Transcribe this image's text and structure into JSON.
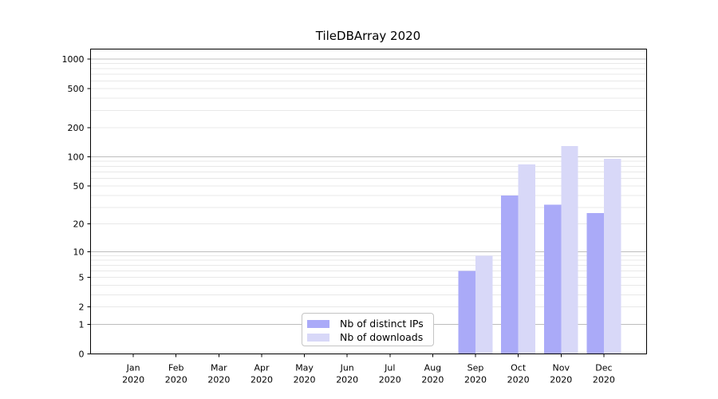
{
  "title": "TileDBArray 2020",
  "colors": {
    "distinct_ips": "#aaaaf8",
    "downloads": "#d8d8f8",
    "grid_major": "#bdbdbd",
    "grid_minor": "#e8e8e8",
    "axis": "#000000",
    "tick_label": "#000000",
    "legend_border": "#c4c4c4",
    "background": "#ffffff"
  },
  "legend": {
    "items": [
      {
        "label": "Nb of distinct IPs",
        "color_key": "distinct_ips"
      },
      {
        "label": "Nb of downloads",
        "color_key": "downloads"
      }
    ]
  },
  "chart_data": {
    "type": "bar",
    "title": "TileDBArray 2020",
    "categories": [
      "Jan 2020",
      "Feb 2020",
      "Mar 2020",
      "Apr 2020",
      "May 2020",
      "Jun 2020",
      "Jul 2020",
      "Aug 2020",
      "Sep 2020",
      "Oct 2020",
      "Nov 2020",
      "Dec 2020"
    ],
    "series": [
      {
        "name": "Nb of distinct IPs",
        "color_key": "distinct_ips",
        "values": [
          0,
          0,
          0,
          0,
          0,
          0,
          0,
          0,
          6,
          40,
          32,
          26
        ]
      },
      {
        "name": "Nb of downloads",
        "color_key": "downloads",
        "values": [
          0,
          0,
          0,
          0,
          0,
          0,
          0,
          0,
          9,
          84,
          130,
          96
        ]
      }
    ],
    "xlabel": "",
    "ylabel": "",
    "yscale": "log10(value+1)",
    "yticks": [
      0,
      1,
      2,
      5,
      10,
      20,
      50,
      100,
      200,
      500,
      1000
    ],
    "ylim": [
      0,
      1264
    ],
    "grid": "horizontal major and minor gridlines",
    "legend_position": "lower center"
  }
}
